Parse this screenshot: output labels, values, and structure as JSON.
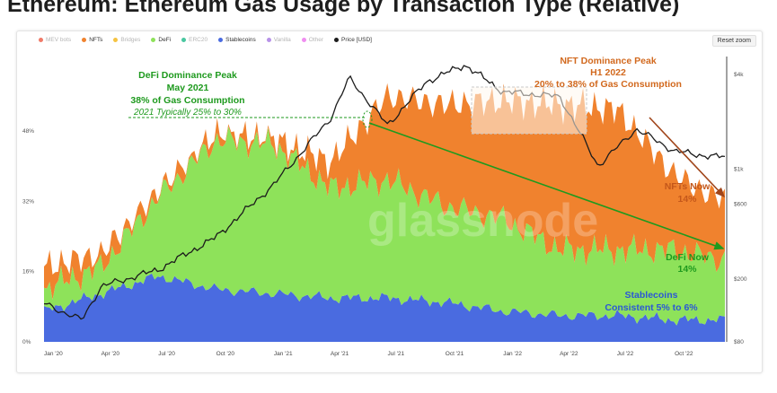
{
  "page": {
    "title": "Ethereum: Ethereum Gas Usage by Transaction Type (Relative)"
  },
  "toolbar": {
    "reset_zoom_label": "Reset zoom"
  },
  "watermark": "glassnode",
  "legend": [
    {
      "label": "MEV bots",
      "color": "#f07a68",
      "active": false
    },
    {
      "label": "NFTs",
      "color": "#f0822e",
      "active": true
    },
    {
      "label": "Bridges",
      "color": "#f5c342",
      "active": false
    },
    {
      "label": "DeFi",
      "color": "#8ee25a",
      "active": true
    },
    {
      "label": "ERC20",
      "color": "#49c7a0",
      "active": false
    },
    {
      "label": "Stablecoins",
      "color": "#4a6be0",
      "active": true
    },
    {
      "label": "Vanilla",
      "color": "#b792e8",
      "active": false
    },
    {
      "label": "Other",
      "color": "#ef8ef0",
      "active": false
    },
    {
      "label": "Price [USD]",
      "color": "#1c1c1c",
      "active": true
    }
  ],
  "annotations": {
    "defi_peak": {
      "line1": "DeFi Dominance Peak",
      "line2": "May 2021",
      "line3": "38% of Gas Consumption",
      "line4": "2021 Typically 25% to 30%",
      "color": "#1e9a1e"
    },
    "nft_peak": {
      "line1": "NFT Dominance Peak",
      "line2": "H1 2022",
      "line3": "20% to 38% of Gas Consumption",
      "color": "#d2691e"
    },
    "nfts_now": {
      "line1": "NFTs Now",
      "line2": "14%",
      "color": "#c4571a"
    },
    "defi_now": {
      "line1": "DeFi Now",
      "line2": "14%",
      "color": "#1e9a1e"
    },
    "stablecoins": {
      "line1": "Stablecoins",
      "line2": "Consistent 5% to 6%",
      "color": "#2b57d6"
    }
  },
  "chart_data": {
    "type": "area",
    "title": "Ethereum: Ethereum Gas Usage by Transaction Type (Relative)",
    "stacking": "stacked",
    "x_labels": [
      "Jan '20",
      "Apr '20",
      "Jul '20",
      "Oct '20",
      "Jan '21",
      "Apr '21",
      "Jul '21",
      "Oct '21",
      "Jan '22",
      "Apr '22",
      "Jul '22",
      "Oct '22"
    ],
    "x_range": [
      "2020-01",
      "2022-12"
    ],
    "y_left": {
      "ticks": [
        "0%",
        "16%",
        "32%",
        "48%"
      ],
      "range": [
        0,
        65
      ],
      "unit": "%"
    },
    "y_right": {
      "ticks": [
        "$80",
        "$200",
        "$600",
        "$1k",
        "$4k"
      ],
      "scale": "log"
    },
    "grid": false,
    "legend_placement": "top-left",
    "series": [
      {
        "name": "Stablecoins",
        "color": "#4a6be0",
        "x": [
          "2020-01",
          "2020-04",
          "2020-07",
          "2020-10",
          "2021-01",
          "2021-04",
          "2021-07",
          "2021-10",
          "2022-01",
          "2022-04",
          "2022-07",
          "2022-10",
          "2022-12"
        ],
        "values": [
          7,
          11,
          15,
          12,
          11,
          10,
          10,
          9,
          7,
          6,
          6,
          5,
          5
        ]
      },
      {
        "name": "DeFi",
        "color": "#8ee25a",
        "x": [
          "2020-01",
          "2020-04",
          "2020-07",
          "2020-10",
          "2021-01",
          "2021-04",
          "2021-07",
          "2021-10",
          "2022-01",
          "2022-04",
          "2022-07",
          "2022-10",
          "2022-12"
        ],
        "values": [
          5,
          6,
          18,
          34,
          34,
          25,
          27,
          22,
          21,
          15,
          15,
          16,
          14
        ]
      },
      {
        "name": "NFTs",
        "color": "#f0822e",
        "x": [
          "2020-01",
          "2020-04",
          "2020-07",
          "2020-10",
          "2021-01",
          "2021-04",
          "2021-07",
          "2021-10",
          "2022-01",
          "2022-04",
          "2022-07",
          "2022-10",
          "2022-12"
        ],
        "values": [
          5,
          3,
          1,
          1,
          1,
          6,
          19,
          23,
          27,
          33,
          32,
          17,
          14
        ]
      },
      {
        "name": "Price [USD]",
        "color": "#1c1c1c",
        "axis": "right",
        "x": [
          "2020-01",
          "2020-03",
          "2020-04",
          "2020-07",
          "2020-10",
          "2021-01",
          "2021-04",
          "2021-05",
          "2021-07",
          "2021-09",
          "2021-11",
          "2022-01",
          "2022-04",
          "2022-06",
          "2022-08",
          "2022-10",
          "2022-12"
        ],
        "values": [
          140,
          110,
          180,
          230,
          370,
          800,
          2100,
          3800,
          1900,
          3600,
          4600,
          3100,
          2900,
          1050,
          1800,
          1300,
          1200
        ]
      }
    ]
  }
}
